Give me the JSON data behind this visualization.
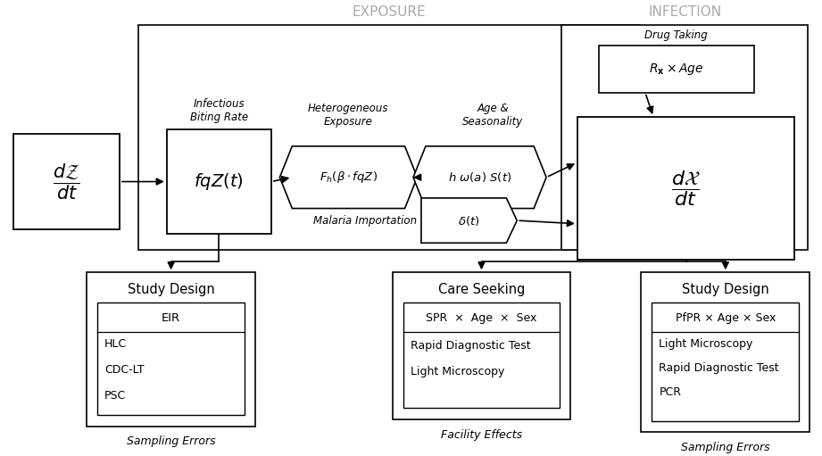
{
  "fig_width": 9.21,
  "fig_height": 5.11,
  "bg_color": "#ffffff",
  "exposure_label": "EXPOSURE",
  "infection_label": "INFECTION",
  "dz_dt_label": "$\\dfrac{d\\mathcal{Z}}{dt}$",
  "fqZ_label": "$fqZ(t)$",
  "Fh_label": "$F_h(\\beta \\cdot fqZ)$",
  "h_omega_label": "$h\\ \\omega(a)\\ S(t)$",
  "dx_dt_label": "$\\dfrac{d\\mathcal{X}}{dt}$",
  "delta_label": "$\\delta(t)$",
  "Rx_label": "$R_{\\mathbf{x}} \\times Age$",
  "infectious_biting_label": "Infectious\nBiting Rate",
  "heterogeneous_label": "Heterogeneous\nExposure",
  "age_seasonality_label": "Age &\nSeasonality",
  "drug_taking_label": "Drug Taking",
  "malaria_importation_label": "Malaria Importation",
  "study_design_left_title": "Study Design",
  "study_design_left_top": "EIR",
  "study_design_left_items": [
    "HLC",
    "CDC-LT",
    "PSC"
  ],
  "care_seeking_title": "Care Seeking",
  "care_seeking_top": "SPR  ×  Age  ×  Sex",
  "care_seeking_items": [
    "Rapid Diagnostic Test",
    "Light Microscopy"
  ],
  "study_design_right_title": "Study Design",
  "study_design_right_top": "PfPR × Age × Sex",
  "study_design_right_items": [
    "Light Microscopy",
    "Rapid Diagnostic Test",
    "PCR"
  ],
  "sampling_errors_label": "Sampling Errors",
  "facility_effects_label": "Facility Effects"
}
